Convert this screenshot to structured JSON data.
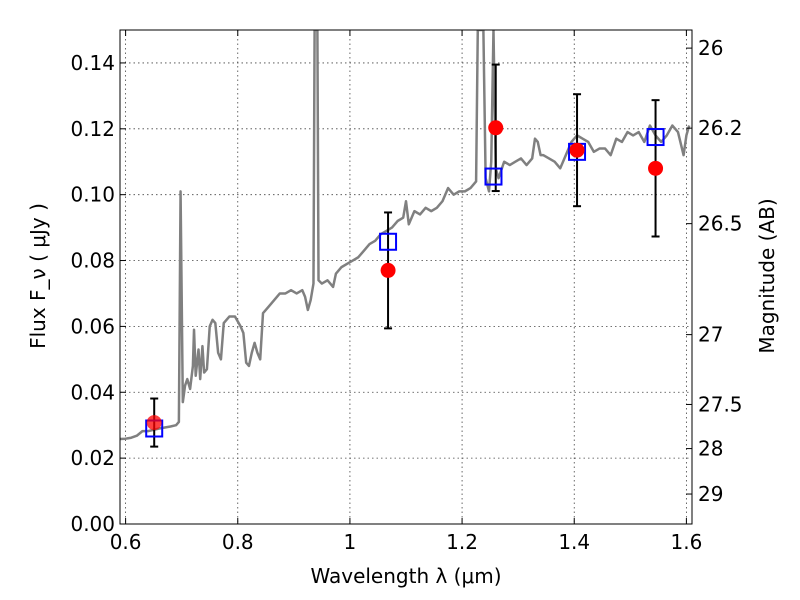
{
  "chart_data": {
    "type": "line",
    "xlabel": "Wavelength  λ (μm)",
    "ylabel": "Flux  F_ν  ( μJy )",
    "ylabel_right": "Magnitude (AB)",
    "xlim": [
      0.59,
      1.61
    ],
    "ylim": [
      0.0,
      0.15
    ],
    "grid": true,
    "x_ticks": [
      0.6,
      0.8,
      1.0,
      1.2,
      1.4,
      1.6
    ],
    "x_tick_labels": [
      "0.6",
      "0.8",
      "1",
      "1.2",
      "1.4",
      "1.6"
    ],
    "y_ticks": [
      0.0,
      0.02,
      0.04,
      0.06,
      0.08,
      0.1,
      0.12,
      0.14
    ],
    "y_tick_labels": [
      "0.00",
      "0.02",
      "0.04",
      "0.06",
      "0.08",
      "0.10",
      "0.12",
      "0.14"
    ],
    "right_ticks": [
      {
        "label": "26",
        "flux": 0.1445
      },
      {
        "label": "26.2",
        "flux": 0.1202
      },
      {
        "label": "26.5",
        "flux": 0.0912
      },
      {
        "label": "27",
        "flux": 0.0575
      },
      {
        "label": "27.5",
        "flux": 0.0363
      },
      {
        "label": "28",
        "flux": 0.0229
      },
      {
        "label": "29",
        "flux": 0.0091
      }
    ],
    "series": [
      {
        "kind": "line",
        "color": "#808080",
        "points": [
          [
            0.59,
            0.0258
          ],
          [
            0.6,
            0.0259
          ],
          [
            0.61,
            0.0262
          ],
          [
            0.62,
            0.0268
          ],
          [
            0.63,
            0.0282
          ],
          [
            0.64,
            0.0282
          ],
          [
            0.65,
            0.0286
          ],
          [
            0.66,
            0.029
          ],
          [
            0.67,
            0.0293
          ],
          [
            0.68,
            0.0296
          ],
          [
            0.69,
            0.03
          ],
          [
            0.695,
            0.031
          ],
          [
            0.698,
            0.101
          ],
          [
            0.702,
            0.037
          ],
          [
            0.706,
            0.042
          ],
          [
            0.71,
            0.044
          ],
          [
            0.715,
            0.041
          ],
          [
            0.72,
            0.048
          ],
          [
            0.722,
            0.059
          ],
          [
            0.725,
            0.045
          ],
          [
            0.73,
            0.053
          ],
          [
            0.733,
            0.044
          ],
          [
            0.737,
            0.054
          ],
          [
            0.74,
            0.046
          ],
          [
            0.745,
            0.047
          ],
          [
            0.75,
            0.06
          ],
          [
            0.755,
            0.062
          ],
          [
            0.76,
            0.061
          ],
          [
            0.765,
            0.052
          ],
          [
            0.77,
            0.05
          ],
          [
            0.775,
            0.061
          ],
          [
            0.785,
            0.063
          ],
          [
            0.795,
            0.063
          ],
          [
            0.805,
            0.06
          ],
          [
            0.81,
            0.058
          ],
          [
            0.815,
            0.049
          ],
          [
            0.82,
            0.048
          ],
          [
            0.825,
            0.052
          ],
          [
            0.83,
            0.055
          ],
          [
            0.835,
            0.052
          ],
          [
            0.84,
            0.05
          ],
          [
            0.845,
            0.064
          ],
          [
            0.855,
            0.066
          ],
          [
            0.865,
            0.068
          ],
          [
            0.875,
            0.07
          ],
          [
            0.885,
            0.07
          ],
          [
            0.895,
            0.071
          ],
          [
            0.905,
            0.07
          ],
          [
            0.915,
            0.071
          ],
          [
            0.92,
            0.069
          ],
          [
            0.925,
            0.065
          ],
          [
            0.93,
            0.068
          ],
          [
            0.935,
            0.073
          ],
          [
            0.937,
            0.15
          ],
          [
            0.942,
            0.15
          ],
          [
            0.944,
            0.074
          ],
          [
            0.95,
            0.073
          ],
          [
            0.96,
            0.074
          ],
          [
            0.965,
            0.073
          ],
          [
            0.97,
            0.072
          ],
          [
            0.975,
            0.076
          ],
          [
            0.985,
            0.078
          ],
          [
            0.995,
            0.079
          ],
          [
            1.005,
            0.08
          ],
          [
            1.015,
            0.081
          ],
          [
            1.025,
            0.083
          ],
          [
            1.035,
            0.085
          ],
          [
            1.045,
            0.086
          ],
          [
            1.055,
            0.088
          ],
          [
            1.065,
            0.089
          ],
          [
            1.075,
            0.09
          ],
          [
            1.085,
            0.092
          ],
          [
            1.095,
            0.093
          ],
          [
            1.1,
            0.098
          ],
          [
            1.105,
            0.091
          ],
          [
            1.115,
            0.095
          ],
          [
            1.125,
            0.094
          ],
          [
            1.135,
            0.096
          ],
          [
            1.145,
            0.095
          ],
          [
            1.155,
            0.096
          ],
          [
            1.165,
            0.098
          ],
          [
            1.175,
            0.102
          ],
          [
            1.185,
            0.1
          ],
          [
            1.195,
            0.101
          ],
          [
            1.205,
            0.101
          ],
          [
            1.215,
            0.102
          ],
          [
            1.225,
            0.104
          ],
          [
            1.228,
            0.15
          ],
          [
            1.238,
            0.15
          ],
          [
            1.242,
            0.105
          ],
          [
            1.248,
            0.101
          ],
          [
            1.252,
            0.11
          ],
          [
            1.256,
            0.15
          ],
          [
            1.26,
            0.108
          ],
          [
            1.265,
            0.105
          ],
          [
            1.275,
            0.11
          ],
          [
            1.285,
            0.109
          ],
          [
            1.295,
            0.11
          ],
          [
            1.305,
            0.111
          ],
          [
            1.315,
            0.109
          ],
          [
            1.325,
            0.111
          ],
          [
            1.33,
            0.117
          ],
          [
            1.335,
            0.116
          ],
          [
            1.34,
            0.112
          ],
          [
            1.345,
            0.112
          ],
          [
            1.355,
            0.111
          ],
          [
            1.365,
            0.11
          ],
          [
            1.375,
            0.108
          ],
          [
            1.385,
            0.112
          ],
          [
            1.395,
            0.116
          ],
          [
            1.405,
            0.118
          ],
          [
            1.415,
            0.117
          ],
          [
            1.425,
            0.116
          ],
          [
            1.435,
            0.113
          ],
          [
            1.445,
            0.114
          ],
          [
            1.455,
            0.114
          ],
          [
            1.465,
            0.112
          ],
          [
            1.475,
            0.117
          ],
          [
            1.485,
            0.116
          ],
          [
            1.495,
            0.119
          ],
          [
            1.505,
            0.118
          ],
          [
            1.515,
            0.119
          ],
          [
            1.525,
            0.116
          ],
          [
            1.535,
            0.121
          ],
          [
            1.545,
            0.118
          ],
          [
            1.555,
            0.116
          ],
          [
            1.565,
            0.118
          ],
          [
            1.575,
            0.121
          ],
          [
            1.585,
            0.119
          ],
          [
            1.595,
            0.112
          ],
          [
            1.6,
            0.118
          ],
          [
            1.605,
            0.121
          ]
        ]
      },
      {
        "kind": "points",
        "marker": "circle",
        "color": "#ff0000",
        "points": [
          {
            "x": 0.651,
            "y": 0.0308,
            "err": 0.0073
          },
          {
            "x": 1.068,
            "y": 0.077,
            "err": 0.0176
          },
          {
            "x": 1.26,
            "y": 0.1203,
            "err": 0.0192
          },
          {
            "x": 1.405,
            "y": 0.1135,
            "err": 0.017
          },
          {
            "x": 1.545,
            "y": 0.108,
            "err": 0.0207
          }
        ]
      },
      {
        "kind": "points",
        "marker": "square",
        "color": "#0000ff",
        "points": [
          {
            "x": 0.651,
            "y": 0.029
          },
          {
            "x": 1.068,
            "y": 0.0857
          },
          {
            "x": 1.256,
            "y": 0.1055
          },
          {
            "x": 1.405,
            "y": 0.113
          },
          {
            "x": 1.545,
            "y": 0.1175
          }
        ]
      }
    ]
  }
}
